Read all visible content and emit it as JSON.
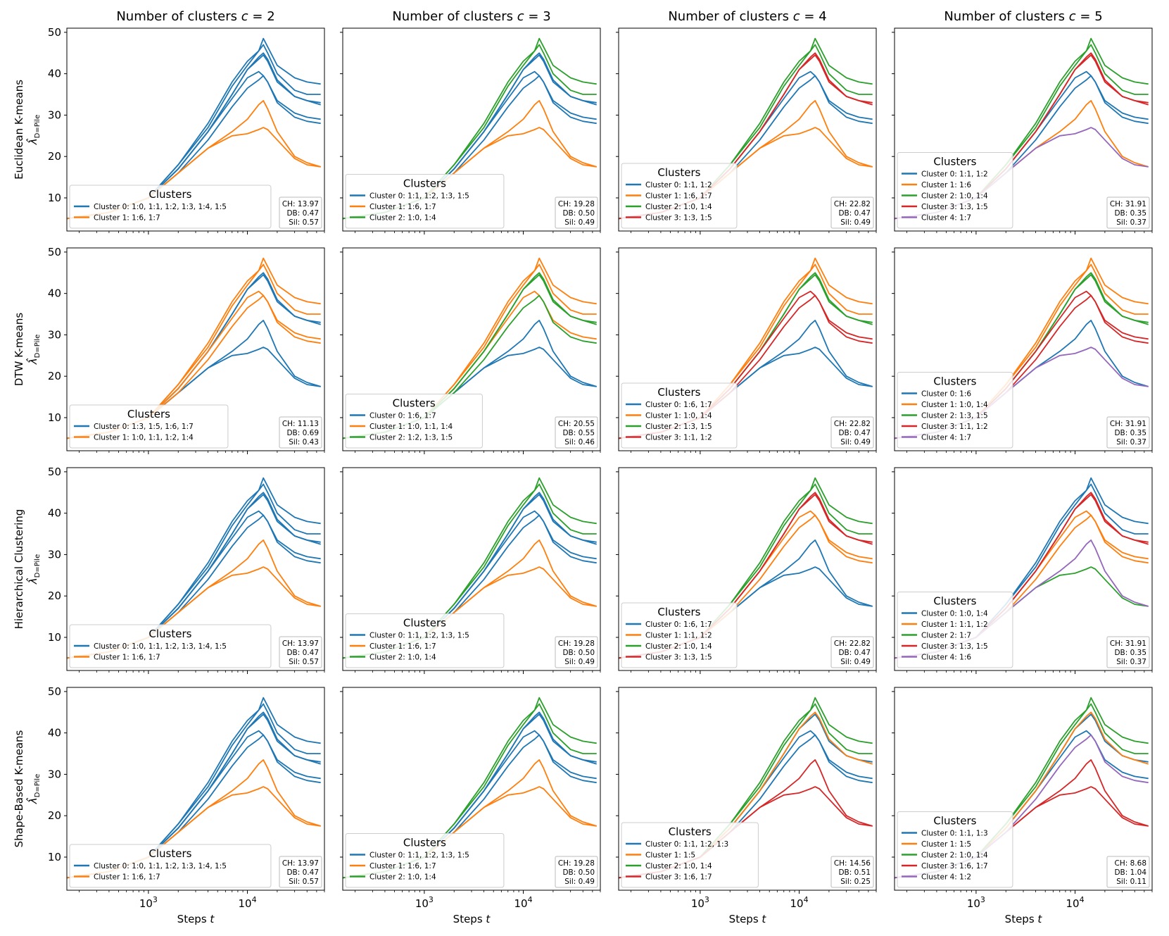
{
  "chart_data": {
    "type": "line",
    "title": "",
    "xlabel": "Steps t",
    "ylabel": "λ̂_{D=Pile}",
    "xscale": "log",
    "xlim": [
      150,
      60000
    ],
    "ylim": [
      2,
      51
    ],
    "yticks": [
      10,
      20,
      30,
      40,
      50
    ],
    "xticks": [
      {
        "value": 1000,
        "base": "10",
        "exp": "3"
      },
      {
        "value": 10000,
        "base": "10",
        "exp": "4"
      }
    ],
    "ylabel_math": {
      "main": "λ̂",
      "sub": "D=Pile"
    },
    "xlabel_math": {
      "text": "Steps",
      "var": "t"
    },
    "colors": {
      "0": "#1f77b4",
      "1": "#ff7f0e",
      "2": "#2ca02c",
      "3": "#d62728",
      "4": "#9467bd"
    },
    "curves": [
      {
        "id": "1:0",
        "x": [
          150,
          400,
          1000,
          2000,
          4000,
          7000,
          10000,
          13000,
          14500,
          16000,
          20000,
          30000,
          40000,
          55000
        ],
        "y": [
          5,
          6.5,
          10,
          18,
          28,
          38,
          43,
          45.5,
          48.5,
          46.5,
          42,
          39,
          38,
          37.5
        ]
      },
      {
        "id": "1:1",
        "x": [
          150,
          400,
          1000,
          2000,
          4000,
          7000,
          10000,
          13000,
          14500,
          16000,
          20000,
          30000,
          40000,
          55000
        ],
        "y": [
          5,
          6.5,
          10,
          17,
          26,
          34,
          39,
          40.5,
          39.5,
          38,
          33.5,
          30.5,
          29.5,
          29
        ]
      },
      {
        "id": "1:2",
        "x": [
          150,
          400,
          1000,
          2000,
          4000,
          7000,
          10000,
          13000,
          14500,
          16000,
          20000,
          30000,
          40000,
          55000
        ],
        "y": [
          5,
          6.5,
          10,
          16,
          24,
          32,
          36.5,
          38.5,
          39.5,
          38,
          33,
          29.5,
          28.5,
          28
        ]
      },
      {
        "id": "1:3",
        "x": [
          150,
          400,
          1000,
          2000,
          4000,
          7000,
          10000,
          13000,
          14500,
          16000,
          20000,
          30000,
          40000,
          55000
        ],
        "y": [
          5,
          6.5,
          10,
          17,
          26,
          35,
          41,
          43.5,
          44.5,
          43,
          38,
          34.5,
          33.5,
          33
        ]
      },
      {
        "id": "1:4",
        "x": [
          150,
          400,
          1000,
          2000,
          4000,
          7000,
          10000,
          13000,
          14500,
          16000,
          20000,
          30000,
          40000,
          55000
        ],
        "y": [
          5,
          6.5,
          10,
          18,
          27,
          37,
          42,
          45.5,
          47,
          45,
          40,
          36,
          35,
          35
        ]
      },
      {
        "id": "1:5",
        "x": [
          150,
          400,
          1000,
          2000,
          4000,
          7000,
          10000,
          13000,
          14500,
          16000,
          20000,
          30000,
          40000,
          55000
        ],
        "y": [
          5,
          6.5,
          10,
          17,
          26,
          35,
          41,
          44,
          45,
          43.5,
          38.5,
          34.5,
          33.5,
          32.5
        ]
      },
      {
        "id": "1:6",
        "x": [
          150,
          400,
          1000,
          2000,
          4000,
          7000,
          10000,
          13000,
          14500,
          16000,
          20000,
          30000,
          40000,
          55000
        ],
        "y": [
          5,
          6.5,
          10,
          16,
          22,
          26,
          29,
          32.5,
          33.5,
          31.5,
          26,
          20,
          18.5,
          17.5
        ]
      },
      {
        "id": "1:7",
        "x": [
          150,
          400,
          1000,
          2000,
          4000,
          7000,
          10000,
          13000,
          14500,
          16000,
          20000,
          30000,
          40000,
          55000
        ],
        "y": [
          5,
          6.5,
          10,
          16,
          22,
          25,
          25.5,
          26.5,
          27,
          26.5,
          24,
          19.5,
          18,
          17.5
        ]
      }
    ],
    "row_labels": [
      "Euclidean K-means",
      "DTW K-means",
      "Hierarchical Clustering",
      "Shape-Based K-means"
    ],
    "col_titles": [
      "Number of clusters c = 2",
      "Number of clusters c = 3",
      "Number of clusters c = 4",
      "Number of clusters c = 5"
    ],
    "col_title_parts": [
      {
        "pre": "Number of clusters ",
        "var": "c",
        "post": " = 2"
      },
      {
        "pre": "Number of clusters ",
        "var": "c",
        "post": " = 3"
      },
      {
        "pre": "Number of clusters ",
        "var": "c",
        "post": " = 4"
      },
      {
        "pre": "Number of clusters ",
        "var": "c",
        "post": " = 5"
      }
    ],
    "legend_title": "Clusters",
    "metric_labels": {
      "ch": "CH: ",
      "db": "DB: ",
      "sil": "Sil: "
    },
    "panels": [
      {
        "clusters": [
          {
            "label": "Cluster 0: 1:0, 1:1, 1:2, 1:3, 1:4, 1:5",
            "members": [
              "1:0",
              "1:1",
              "1:2",
              "1:3",
              "1:4",
              "1:5"
            ]
          },
          {
            "label": "Cluster 1: 1:6, 1:7",
            "members": [
              "1:6",
              "1:7"
            ]
          }
        ],
        "legend_pos": "lower-left",
        "metrics": {
          "ch": "13.97",
          "db": "0.47",
          "sil": "0.57"
        }
      },
      {
        "clusters": [
          {
            "label": "Cluster 0: 1:1, 1:2, 1:3, 1:5",
            "members": [
              "1:1",
              "1:2",
              "1:3",
              "1:5"
            ]
          },
          {
            "label": "Cluster 1: 1:6, 1:7",
            "members": [
              "1:6",
              "1:7"
            ]
          },
          {
            "label": "Cluster 2: 1:0, 1:4",
            "members": [
              "1:0",
              "1:4"
            ]
          }
        ],
        "legend_pos": "lower-left",
        "metrics": {
          "ch": "19.28",
          "db": "0.50",
          "sil": "0.49"
        }
      },
      {
        "clusters": [
          {
            "label": "Cluster 0: 1:1, 1:2",
            "members": [
              "1:1",
              "1:2"
            ]
          },
          {
            "label": "Cluster 1: 1:6, 1:7",
            "members": [
              "1:6",
              "1:7"
            ]
          },
          {
            "label": "Cluster 2: 1:0, 1:4",
            "members": [
              "1:0",
              "1:4"
            ]
          },
          {
            "label": "Cluster 3: 1:3, 1:5",
            "members": [
              "1:3",
              "1:5"
            ]
          }
        ],
        "legend_pos": "lower-left",
        "metrics": {
          "ch": "22.82",
          "db": "0.47",
          "sil": "0.49"
        }
      },
      {
        "clusters": [
          {
            "label": "Cluster 0: 1:1, 1:2",
            "members": [
              "1:1",
              "1:2"
            ]
          },
          {
            "label": "Cluster 1: 1:6",
            "members": [
              "1:6"
            ]
          },
          {
            "label": "Cluster 2: 1:0, 1:4",
            "members": [
              "1:0",
              "1:4"
            ]
          },
          {
            "label": "Cluster 3: 1:3, 1:5",
            "members": [
              "1:3",
              "1:5"
            ]
          },
          {
            "label": "Cluster 4: 1:7",
            "members": [
              "1:7"
            ]
          }
        ],
        "legend_pos": "lower-left",
        "metrics": {
          "ch": "31.91",
          "db": "0.35",
          "sil": "0.37"
        }
      },
      {
        "clusters": [
          {
            "label": "Cluster 0: 1:3, 1:5, 1:6, 1:7",
            "members": [
              "1:3",
              "1:5",
              "1:6",
              "1:7"
            ]
          },
          {
            "label": "Cluster 1: 1:0, 1:1, 1:2, 1:4",
            "members": [
              "1:0",
              "1:1",
              "1:2",
              "1:4"
            ]
          }
        ],
        "legend_pos": "lower-left",
        "metrics": {
          "ch": "11.13",
          "db": "0.69",
          "sil": "0.43"
        }
      },
      {
        "clusters": [
          {
            "label": "Cluster 0: 1:6, 1:7",
            "members": [
              "1:6",
              "1:7"
            ]
          },
          {
            "label": "Cluster 1: 1:0, 1:1, 1:4",
            "members": [
              "1:0",
              "1:1",
              "1:4"
            ]
          },
          {
            "label": "Cluster 2: 1:2, 1:3, 1:5",
            "members": [
              "1:2",
              "1:3",
              "1:5"
            ]
          }
        ],
        "legend_pos": "lower-left",
        "metrics": {
          "ch": "20.55",
          "db": "0.55",
          "sil": "0.46"
        }
      },
      {
        "clusters": [
          {
            "label": "Cluster 0: 1:6, 1:7",
            "members": [
              "1:6",
              "1:7"
            ]
          },
          {
            "label": "Cluster 1: 1:0, 1:4",
            "members": [
              "1:0",
              "1:4"
            ]
          },
          {
            "label": "Cluster 2: 1:3, 1:5",
            "members": [
              "1:3",
              "1:5"
            ]
          },
          {
            "label": "Cluster 3: 1:1, 1:2",
            "members": [
              "1:1",
              "1:2"
            ]
          }
        ],
        "legend_pos": "lower-left",
        "metrics": {
          "ch": "22.82",
          "db": "0.47",
          "sil": "0.49"
        }
      },
      {
        "clusters": [
          {
            "label": "Cluster 0: 1:6",
            "members": [
              "1:6"
            ]
          },
          {
            "label": "Cluster 1: 1:0, 1:4",
            "members": [
              "1:0",
              "1:4"
            ]
          },
          {
            "label": "Cluster 2: 1:3, 1:5",
            "members": [
              "1:3",
              "1:5"
            ]
          },
          {
            "label": "Cluster 3: 1:1, 1:2",
            "members": [
              "1:1",
              "1:2"
            ]
          },
          {
            "label": "Cluster 4: 1:7",
            "members": [
              "1:7"
            ]
          }
        ],
        "legend_pos": "lower-left",
        "metrics": {
          "ch": "31.91",
          "db": "0.35",
          "sil": "0.37"
        }
      },
      {
        "clusters": [
          {
            "label": "Cluster 0: 1:0, 1:1, 1:2, 1:3, 1:4, 1:5",
            "members": [
              "1:0",
              "1:1",
              "1:2",
              "1:3",
              "1:4",
              "1:5"
            ]
          },
          {
            "label": "Cluster 1: 1:6, 1:7",
            "members": [
              "1:6",
              "1:7"
            ]
          }
        ],
        "legend_pos": "lower-left",
        "metrics": {
          "ch": "13.97",
          "db": "0.47",
          "sil": "0.57"
        }
      },
      {
        "clusters": [
          {
            "label": "Cluster 0: 1:1, 1:2, 1:3, 1:5",
            "members": [
              "1:1",
              "1:2",
              "1:3",
              "1:5"
            ]
          },
          {
            "label": "Cluster 1: 1:6, 1:7",
            "members": [
              "1:6",
              "1:7"
            ]
          },
          {
            "label": "Cluster 2: 1:0, 1:4",
            "members": [
              "1:0",
              "1:4"
            ]
          }
        ],
        "legend_pos": "lower-left",
        "metrics": {
          "ch": "19.28",
          "db": "0.50",
          "sil": "0.49"
        }
      },
      {
        "clusters": [
          {
            "label": "Cluster 0: 1:6, 1:7",
            "members": [
              "1:6",
              "1:7"
            ]
          },
          {
            "label": "Cluster 1: 1:1, 1:2",
            "members": [
              "1:1",
              "1:2"
            ]
          },
          {
            "label": "Cluster 2: 1:0, 1:4",
            "members": [
              "1:0",
              "1:4"
            ]
          },
          {
            "label": "Cluster 3: 1:3, 1:5",
            "members": [
              "1:3",
              "1:5"
            ]
          }
        ],
        "legend_pos": "lower-left",
        "metrics": {
          "ch": "22.82",
          "db": "0.47",
          "sil": "0.49"
        }
      },
      {
        "clusters": [
          {
            "label": "Cluster 0: 1:0, 1:4",
            "members": [
              "1:0",
              "1:4"
            ]
          },
          {
            "label": "Cluster 1: 1:1, 1:2",
            "members": [
              "1:1",
              "1:2"
            ]
          },
          {
            "label": "Cluster 2: 1:7",
            "members": [
              "1:7"
            ]
          },
          {
            "label": "Cluster 3: 1:3, 1:5",
            "members": [
              "1:3",
              "1:5"
            ]
          },
          {
            "label": "Cluster 4: 1:6",
            "members": [
              "1:6"
            ]
          }
        ],
        "legend_pos": "lower-left",
        "metrics": {
          "ch": "31.91",
          "db": "0.35",
          "sil": "0.37"
        }
      },
      {
        "clusters": [
          {
            "label": "Cluster 0: 1:0, 1:1, 1:2, 1:3, 1:4, 1:5",
            "members": [
              "1:0",
              "1:1",
              "1:2",
              "1:3",
              "1:4",
              "1:5"
            ]
          },
          {
            "label": "Cluster 1: 1:6, 1:7",
            "members": [
              "1:6",
              "1:7"
            ]
          }
        ],
        "legend_pos": "lower-left",
        "metrics": {
          "ch": "13.97",
          "db": "0.47",
          "sil": "0.57"
        }
      },
      {
        "clusters": [
          {
            "label": "Cluster 0: 1:1, 1:2, 1:3, 1:5",
            "members": [
              "1:1",
              "1:2",
              "1:3",
              "1:5"
            ]
          },
          {
            "label": "Cluster 1: 1:6, 1:7",
            "members": [
              "1:6",
              "1:7"
            ]
          },
          {
            "label": "Cluster 2: 1:0, 1:4",
            "members": [
              "1:0",
              "1:4"
            ]
          }
        ],
        "legend_pos": "lower-left",
        "metrics": {
          "ch": "19.28",
          "db": "0.50",
          "sil": "0.49"
        }
      },
      {
        "clusters": [
          {
            "label": "Cluster 0: 1:1, 1:2, 1:3",
            "members": [
              "1:1",
              "1:2",
              "1:3"
            ]
          },
          {
            "label": "Cluster 1: 1:5",
            "members": [
              "1:5"
            ]
          },
          {
            "label": "Cluster 2: 1:0, 1:4",
            "members": [
              "1:0",
              "1:4"
            ]
          },
          {
            "label": "Cluster 3: 1:6, 1:7",
            "members": [
              "1:6",
              "1:7"
            ]
          }
        ],
        "legend_pos": "lower-left",
        "metrics": {
          "ch": "14.56",
          "db": "0.51",
          "sil": "0.25"
        }
      },
      {
        "clusters": [
          {
            "label": "Cluster 0: 1:1, 1:3",
            "members": [
              "1:1",
              "1:3"
            ]
          },
          {
            "label": "Cluster 1: 1:5",
            "members": [
              "1:5"
            ]
          },
          {
            "label": "Cluster 2: 1:0, 1:4",
            "members": [
              "1:0",
              "1:4"
            ]
          },
          {
            "label": "Cluster 3: 1:6, 1:7",
            "members": [
              "1:6",
              "1:7"
            ]
          },
          {
            "label": "Cluster 4: 1:2",
            "members": [
              "1:2"
            ]
          }
        ],
        "legend_pos": "lower-left",
        "metrics": {
          "ch": "8.68",
          "db": "1.04",
          "sil": "0.11"
        }
      }
    ]
  }
}
